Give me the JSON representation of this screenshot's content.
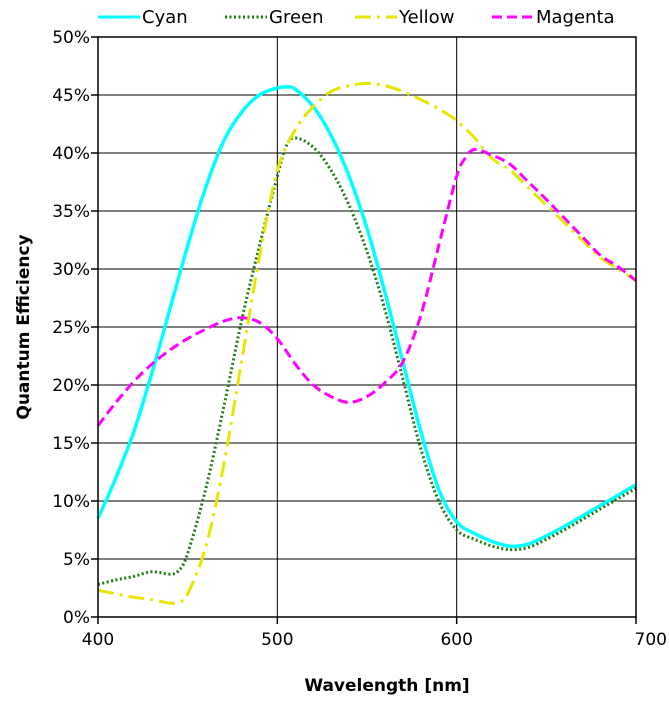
{
  "chart_data": {
    "type": "line",
    "xlabel": "Wavelength [nm]",
    "ylabel": "Quantum Efficiency",
    "xlim": [
      400,
      700
    ],
    "ylim": [
      0,
      50
    ],
    "x_ticks": [
      400,
      500,
      600,
      700
    ],
    "y_ticks": [
      0,
      5,
      10,
      15,
      20,
      25,
      30,
      35,
      40,
      45,
      50
    ],
    "y_tick_labels": [
      "0%",
      "5%",
      "10%",
      "15%",
      "20%",
      "25%",
      "30%",
      "35%",
      "40%",
      "45%",
      "50%"
    ],
    "x_tick_labels": [
      "400",
      "500",
      "600",
      "700"
    ],
    "grid": true,
    "legend_position": "top",
    "series": [
      {
        "name": "Cyan",
        "color": "#00FFFF",
        "dash": "solid",
        "x": [
          400,
          410,
          420,
          430,
          440,
          450,
          460,
          470,
          480,
          490,
          500,
          505,
          510,
          520,
          530,
          540,
          550,
          560,
          570,
          580,
          590,
          600,
          610,
          620,
          630,
          640,
          650,
          660,
          670,
          680,
          690,
          700
        ],
        "y": [
          8.5,
          12,
          16,
          21,
          26.5,
          32,
          37,
          41,
          43.5,
          45,
          45.6,
          45.7,
          45.5,
          44,
          41.5,
          38,
          33.5,
          28,
          22,
          16,
          11,
          8.2,
          7.2,
          6.5,
          6.1,
          6.3,
          7,
          7.8,
          8.7,
          9.6,
          10.5,
          11.4
        ]
      },
      {
        "name": "Green",
        "color": "#1E7A10",
        "dash": "dotted",
        "x": [
          400,
          410,
          420,
          430,
          440,
          445,
          450,
          460,
          470,
          480,
          490,
          500,
          505,
          510,
          520,
          530,
          540,
          550,
          560,
          570,
          580,
          590,
          600,
          610,
          620,
          630,
          640,
          650,
          660,
          670,
          680,
          690,
          700
        ],
        "y": [
          2.8,
          3.2,
          3.5,
          3.9,
          3.7,
          4,
          5.5,
          11,
          18,
          25.5,
          32,
          38,
          40.6,
          41.3,
          40.5,
          38.5,
          35.5,
          31.5,
          26.5,
          20.5,
          14.5,
          10,
          7.5,
          6.7,
          6.1,
          5.8,
          6,
          6.7,
          7.5,
          8.4,
          9.3,
          10.2,
          11.1
        ]
      },
      {
        "name": "Yellow",
        "color": "#E6E600",
        "dash": "dashdot",
        "x": [
          400,
          410,
          420,
          430,
          440,
          445,
          450,
          460,
          470,
          480,
          490,
          500,
          510,
          520,
          530,
          540,
          550,
          560,
          570,
          580,
          590,
          600,
          610,
          620,
          630,
          640,
          650,
          660,
          670,
          680,
          690,
          700
        ],
        "y": [
          2.3,
          2.0,
          1.7,
          1.5,
          1.2,
          1.3,
          2.0,
          6,
          13,
          22,
          31,
          38.5,
          42,
          44,
          45.3,
          45.8,
          46,
          45.8,
          45.3,
          44.6,
          43.8,
          42.8,
          41.3,
          39.5,
          38.5,
          37,
          35.5,
          34,
          32.5,
          31,
          30,
          29
        ]
      },
      {
        "name": "Magenta",
        "color": "#FF00FF",
        "dash": "dashed",
        "x": [
          400,
          410,
          420,
          430,
          440,
          450,
          460,
          470,
          480,
          490,
          500,
          510,
          520,
          530,
          540,
          550,
          560,
          570,
          580,
          590,
          600,
          605,
          610,
          620,
          630,
          640,
          650,
          660,
          670,
          680,
          690,
          700
        ],
        "y": [
          16.5,
          18.5,
          20.3,
          21.8,
          23,
          24,
          24.8,
          25.5,
          25.8,
          25.4,
          24,
          21.8,
          20,
          19,
          18.5,
          19,
          20.2,
          22,
          26,
          32,
          38,
          39.6,
          40.3,
          39.8,
          39,
          37.5,
          36,
          34.4,
          32.8,
          31.2,
          30.2,
          29
        ]
      }
    ]
  }
}
